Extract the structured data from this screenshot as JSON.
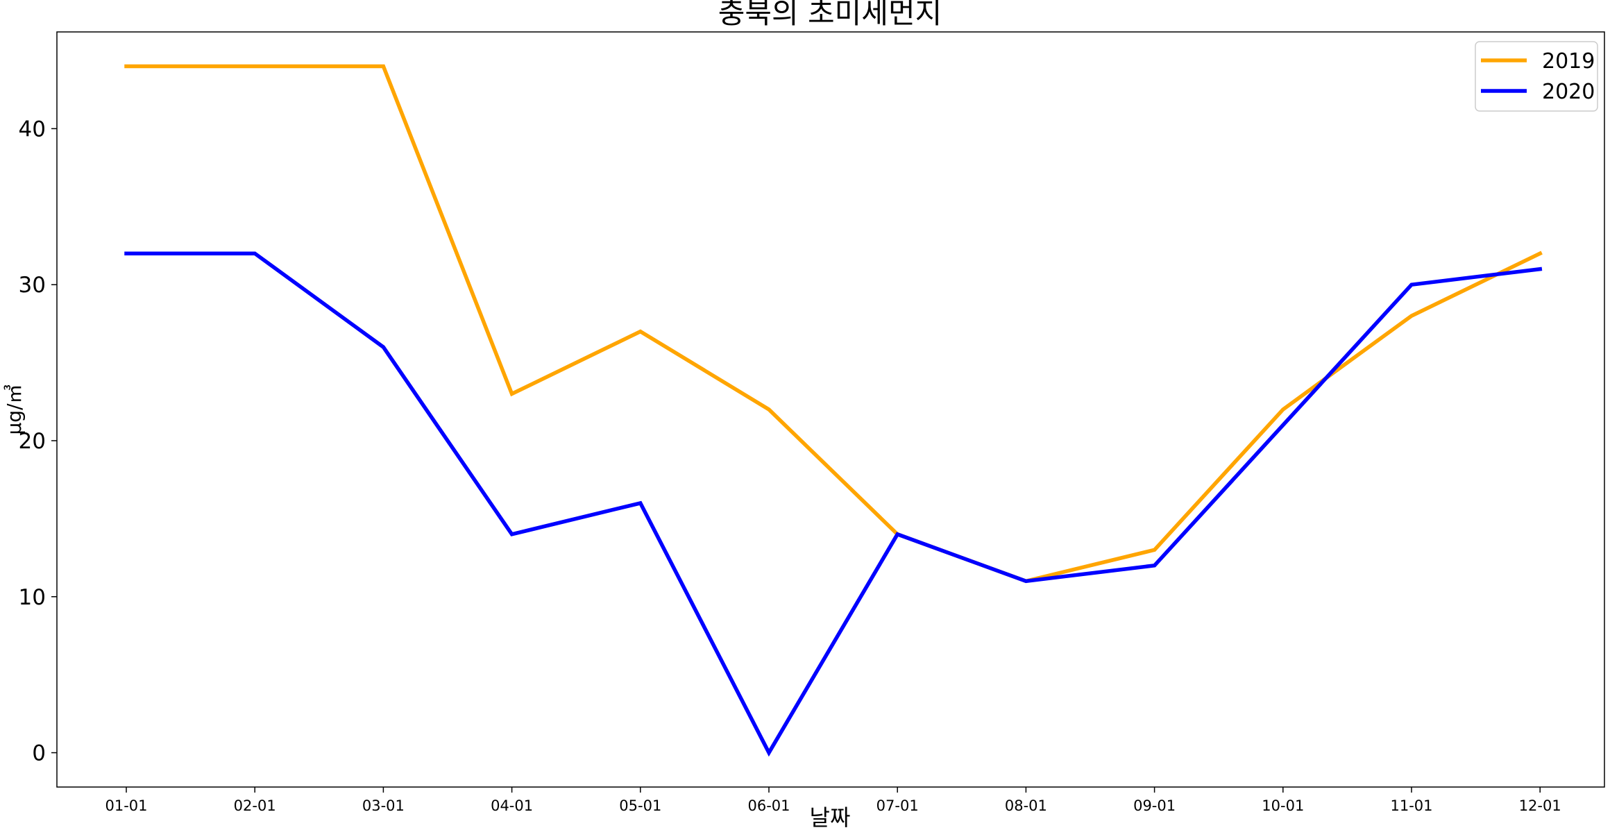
{
  "chart_data": {
    "type": "line",
    "title": "충북의 초미세먼지",
    "xlabel": "날짜",
    "ylabel": "μg/㎥",
    "categories": [
      "01-01",
      "02-01",
      "03-01",
      "04-01",
      "05-01",
      "06-01",
      "07-01",
      "08-01",
      "09-01",
      "10-01",
      "11-01",
      "12-01"
    ],
    "series": [
      {
        "name": "2019",
        "color": "#ffa500",
        "values": [
          44,
          44,
          44,
          23,
          27,
          22,
          14,
          11,
          13,
          22,
          28,
          32
        ]
      },
      {
        "name": "2020",
        "color": "#0000ff",
        "values": [
          32,
          32,
          26,
          14,
          16,
          0,
          14,
          11,
          12,
          21,
          30,
          31
        ]
      }
    ],
    "ylim": [
      -2.2,
      46.2
    ],
    "yticks": [
      0,
      10,
      20,
      30,
      40
    ],
    "grid": false,
    "legend_position": "top-right"
  }
}
